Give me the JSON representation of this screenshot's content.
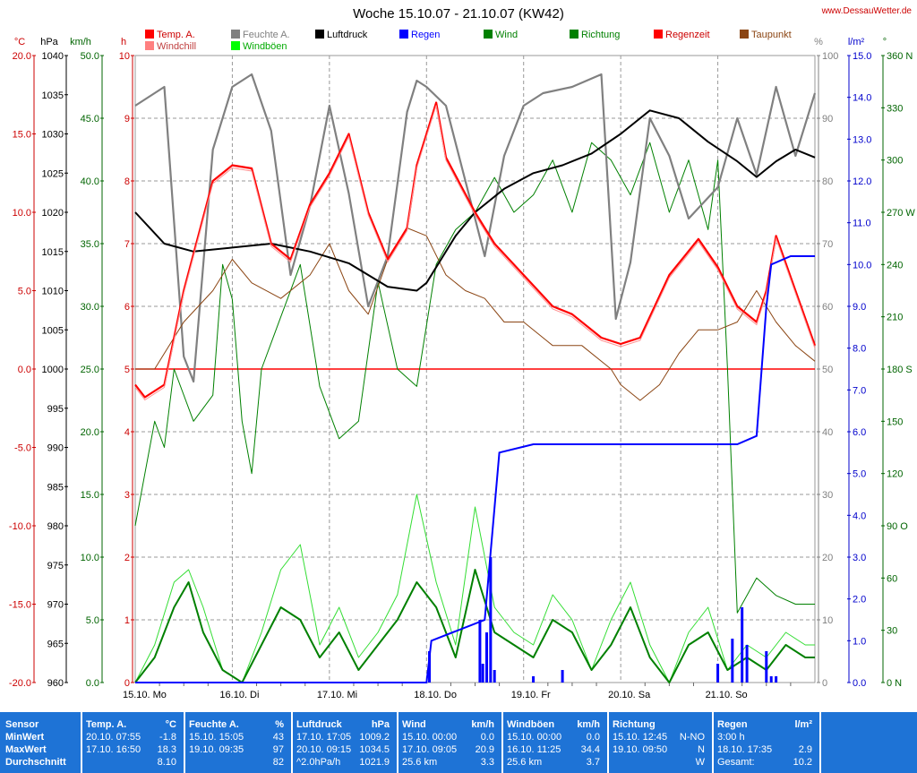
{
  "header": {
    "title": "Woche 15.10.07 - 21.10.07 (KW42)",
    "site": "www.DessauWetter.de"
  },
  "chart_data": {
    "type": "line",
    "title": "Woche 15.10.07 - 21.10.07 (KW42)",
    "x_labels": [
      "15.10. Mo",
      "16.10. Di",
      "17.10. Mi",
      "18.10. Do",
      "19.10. Fr",
      "20.10. Sa",
      "21.10. So"
    ],
    "grid": true,
    "legend": [
      {
        "name": "Temp. A.",
        "color": "#ff0000"
      },
      {
        "name": "Windchill",
        "color": "#ff8080"
      },
      {
        "name": "Feuchte A.",
        "color": "#808080"
      },
      {
        "name": "Windböen",
        "color": "#00ff00"
      },
      {
        "name": "Luftdruck",
        "color": "#000000"
      },
      {
        "name": "Regen",
        "color": "#0000ff"
      },
      {
        "name": "Wind",
        "color": "#008000"
      },
      {
        "name": "Richtung",
        "color": "#008000"
      },
      {
        "name": "Regenzeit",
        "color": "#ff0000"
      },
      {
        "name": "Taupunkt",
        "color": "#8b4513"
      }
    ],
    "axes": {
      "temp": {
        "unit": "°C",
        "color": "#cc0000",
        "ticks": [
          "20.0",
          "15.0",
          "10.0",
          "5.0",
          "0.0",
          "-5.0",
          "-10.0",
          "-15.0",
          "-20.0"
        ],
        "ylim": [
          -20,
          20
        ]
      },
      "pressure": {
        "unit": "hPa",
        "color": "#000000",
        "ticks": [
          "1040",
          "1035",
          "1030",
          "1025",
          "1020",
          "1015",
          "1010",
          "1005",
          "1000",
          "995",
          "990",
          "985",
          "980",
          "975",
          "970",
          "965",
          "960"
        ],
        "ylim": [
          960,
          1040
        ]
      },
      "wind": {
        "unit": "km/h",
        "color": "#006400",
        "ticks": [
          "50.0",
          "45.0",
          "40.0",
          "35.0",
          "30.0",
          "25.0",
          "20.0",
          "15.0",
          "10.0",
          "5.0",
          "0.0"
        ],
        "ylim": [
          0,
          50
        ]
      },
      "raintime": {
        "unit": "h",
        "color": "#cc0000",
        "ticks": [
          "10",
          "9",
          "8",
          "7",
          "6",
          "5",
          "4",
          "3",
          "2",
          "1",
          "0"
        ],
        "ylim": [
          0,
          10
        ]
      },
      "humidity": {
        "unit": "%",
        "color": "#808080",
        "ticks": [
          "100",
          "90",
          "80",
          "70",
          "60",
          "50",
          "40",
          "30",
          "20",
          "10",
          "0"
        ],
        "ylim": [
          0,
          100
        ]
      },
      "rain": {
        "unit": "l/m²",
        "color": "#0000cc",
        "ticks": [
          "15.0",
          "14.0",
          "13.0",
          "12.0",
          "11.0",
          "10.0",
          "9.0",
          "8.0",
          "7.0",
          "6.0",
          "5.0",
          "4.0",
          "3.0",
          "2.0",
          "1.0",
          "0.0"
        ],
        "ylim": [
          0,
          15
        ]
      },
      "direction": {
        "unit": "°",
        "color": "#006400",
        "ticks": [
          "360 N",
          "330",
          "300",
          "270 W",
          "240",
          "210",
          "180 S",
          "150",
          "120",
          "90 O",
          "60",
          "30",
          "0  N"
        ],
        "ylim": [
          0,
          360
        ]
      }
    },
    "series": [
      {
        "name": "Temp. A.",
        "axis": "temp",
        "x": [
          0,
          0.1,
          0.3,
          0.5,
          0.8,
          1.0,
          1.2,
          1.4,
          1.6,
          1.8,
          2.0,
          2.2,
          2.4,
          2.6,
          2.8,
          2.9,
          3.0,
          3.1,
          3.2,
          3.5,
          3.7,
          4.0,
          4.3,
          4.5,
          4.8,
          5.0,
          5.2,
          5.5,
          5.8,
          6.0,
          6.2,
          6.4,
          6.5,
          6.6,
          6.8,
          7.0
        ],
        "values": [
          -1,
          -1.8,
          -1,
          5,
          12,
          13,
          12.8,
          8,
          7,
          10.5,
          12.5,
          15,
          10,
          7,
          9,
          13,
          15,
          17,
          13.5,
          10,
          8,
          6,
          4,
          3.5,
          2,
          1.6,
          2,
          6,
          8.3,
          6.5,
          4,
          3,
          5,
          8.5,
          5,
          1.5
        ]
      },
      {
        "name": "Feuchte A.",
        "axis": "humidity",
        "x": [
          0,
          0.3,
          0.5,
          0.6,
          0.8,
          1.0,
          1.2,
          1.4,
          1.6,
          1.8,
          2.0,
          2.2,
          2.4,
          2.6,
          2.8,
          2.9,
          3.0,
          3.2,
          3.4,
          3.6,
          3.8,
          4.0,
          4.2,
          4.5,
          4.8,
          4.95,
          5.1,
          5.3,
          5.5,
          5.7,
          6.0,
          6.2,
          6.4,
          6.6,
          6.8,
          7.0
        ],
        "values": [
          92,
          95,
          52,
          48,
          85,
          95,
          97,
          88,
          65,
          76,
          92,
          78,
          60,
          68,
          91,
          96,
          95,
          92,
          80,
          68,
          84,
          92,
          94,
          95,
          97,
          58,
          67,
          90,
          84,
          74,
          79,
          90,
          81,
          95,
          84,
          94
        ]
      },
      {
        "name": "Luftdruck",
        "axis": "pressure",
        "x": [
          0,
          0.3,
          0.6,
          1.0,
          1.4,
          1.8,
          2.2,
          2.6,
          2.9,
          3.0,
          3.1,
          3.3,
          3.5,
          3.8,
          4.1,
          4.4,
          4.7,
          5.0,
          5.3,
          5.6,
          5.9,
          6.2,
          6.4,
          6.6,
          6.8,
          7.0
        ],
        "values": [
          1020,
          1016,
          1015,
          1015.5,
          1016,
          1015,
          1013.5,
          1010.5,
          1010,
          1011,
          1013,
          1017,
          1020,
          1023,
          1025,
          1026,
          1027.5,
          1030,
          1033,
          1032,
          1029,
          1026.5,
          1024.5,
          1026.5,
          1028,
          1027
        ]
      },
      {
        "name": "Taupunkt",
        "axis": "temp",
        "x": [
          0,
          0.2,
          0.5,
          0.8,
          1.0,
          1.2,
          1.5,
          1.8,
          2.0,
          2.2,
          2.4,
          2.6,
          2.8,
          3.0,
          3.2,
          3.4,
          3.6,
          3.8,
          4.0,
          4.3,
          4.6,
          4.9,
          5.0,
          5.2,
          5.4,
          5.6,
          5.8,
          6.0,
          6.2,
          6.4,
          6.6,
          6.8,
          7.0
        ],
        "values": [
          0,
          0,
          3,
          5,
          7,
          5.5,
          4.5,
          6,
          8,
          5,
          3.5,
          7,
          9,
          8.5,
          6,
          5,
          4.5,
          3,
          3,
          1.5,
          1.5,
          0,
          -1,
          -2,
          -1,
          1,
          2.5,
          2.5,
          3,
          5,
          3,
          1.5,
          0.5
        ]
      },
      {
        "name": "Wind",
        "axis": "wind",
        "x": [
          0,
          0.2,
          0.4,
          0.55,
          0.7,
          0.9,
          1.1,
          1.3,
          1.5,
          1.7,
          1.9,
          2.1,
          2.3,
          2.5,
          2.7,
          2.9,
          3.1,
          3.3,
          3.5,
          3.7,
          3.9,
          4.1,
          4.3,
          4.5,
          4.7,
          4.9,
          5.1,
          5.3,
          5.5,
          5.7,
          5.9,
          6.1,
          6.3,
          6.5,
          6.7,
          6.9,
          7.0
        ],
        "values": [
          0,
          2,
          6,
          8,
          4,
          1,
          0,
          3,
          6,
          5,
          2,
          4,
          1,
          3,
          5,
          8,
          6,
          2,
          9,
          4,
          3,
          2,
          5,
          4,
          1,
          3,
          6,
          2,
          0,
          3,
          4,
          1,
          2,
          1,
          3,
          2,
          2
        ]
      },
      {
        "name": "Windböen",
        "axis": "wind",
        "x": [
          0,
          0.2,
          0.4,
          0.55,
          0.7,
          0.9,
          1.1,
          1.3,
          1.5,
          1.7,
          1.9,
          2.1,
          2.3,
          2.5,
          2.7,
          2.9,
          3.1,
          3.3,
          3.5,
          3.7,
          3.9,
          4.1,
          4.3,
          4.5,
          4.7,
          4.9,
          5.1,
          5.3,
          5.5,
          5.7,
          5.9,
          6.1,
          6.3,
          6.5,
          6.7,
          6.9,
          7.0
        ],
        "values": [
          0,
          3,
          8,
          9,
          6,
          1,
          0,
          4,
          9,
          11,
          3,
          6,
          2,
          4,
          7,
          15,
          8,
          3,
          14,
          6,
          4,
          3,
          7,
          5,
          1,
          5,
          8,
          3,
          0,
          4,
          6,
          1,
          3,
          2,
          4,
          3,
          3
        ]
      },
      {
        "name": "Richtung",
        "axis": "direction",
        "x": [
          0,
          0.1,
          0.2,
          0.3,
          0.4,
          0.6,
          0.8,
          0.9,
          1.0,
          1.1,
          1.2,
          1.3,
          1.5,
          1.7,
          1.9,
          2.1,
          2.3,
          2.5,
          2.7,
          2.9,
          3.1,
          3.3,
          3.5,
          3.7,
          3.9,
          4.1,
          4.3,
          4.5,
          4.7,
          4.9,
          5.1,
          5.3,
          5.5,
          5.7,
          5.9,
          6.0,
          6.1,
          6.2,
          6.4,
          6.6,
          6.8,
          7.0
        ],
        "values": [
          90,
          120,
          150,
          135,
          180,
          150,
          165,
          240,
          220,
          150,
          120,
          180,
          210,
          240,
          170,
          140,
          150,
          230,
          180,
          170,
          240,
          260,
          270,
          290,
          270,
          280,
          300,
          270,
          310,
          300,
          280,
          310,
          270,
          300,
          260,
          300,
          180,
          40,
          60,
          50,
          45,
          45
        ]
      }
    ],
    "rain_total": {
      "axis": "rain",
      "x": [
        0,
        3.0,
        3.05,
        3.6,
        3.75,
        4.1,
        6.2,
        6.4,
        6.5,
        6.55,
        6.75,
        7.0
      ],
      "values": [
        0,
        0,
        1,
        1.5,
        5.5,
        5.7,
        5.7,
        5.9,
        9,
        10,
        10.2,
        10.2
      ]
    },
    "rain_time": {
      "axis": "raintime",
      "x": [
        3.03,
        3.55,
        3.58,
        3.62,
        3.66,
        3.7,
        4.1,
        4.4,
        6.0,
        6.15,
        6.25,
        6.3,
        6.5,
        6.55,
        6.6
      ],
      "values": [
        0.5,
        1,
        0.3,
        0.8,
        2,
        0.2,
        0.1,
        0.2,
        0.3,
        0.7,
        1.2,
        0.6,
        0.5,
        0.1,
        0.1
      ]
    }
  },
  "table": {
    "row_labels": [
      "Sensor",
      "MinWert",
      "MaxWert",
      "Durchschnitt"
    ],
    "columns": [
      {
        "name": "Temp. A.",
        "unit": "°C",
        "rows": [
          [
            "20.10. 07:55",
            "-1.8"
          ],
          [
            "17.10. 16:50",
            "18.3"
          ],
          [
            "",
            "8.10"
          ]
        ]
      },
      {
        "name": "Feuchte A.",
        "unit": "%",
        "rows": [
          [
            "15.10. 15:05",
            "43"
          ],
          [
            "19.10. 09:35",
            "97"
          ],
          [
            "",
            "82"
          ]
        ]
      },
      {
        "name": "Luftdruck",
        "unit": "hPa",
        "rows": [
          [
            "17.10. 17:05",
            "1009.2"
          ],
          [
            "20.10. 09:15",
            "1034.5"
          ],
          [
            "^2.0hPa/h",
            "1021.9"
          ]
        ]
      },
      {
        "name": "Wind",
        "unit": "km/h",
        "rows": [
          [
            "15.10. 00:00",
            "0.0"
          ],
          [
            "17.10. 09:05",
            "20.9"
          ],
          [
            "25.6 km",
            "3.3"
          ]
        ]
      },
      {
        "name": "Windböen",
        "unit": "km/h",
        "rows": [
          [
            "15.10. 00:00",
            "0.0"
          ],
          [
            "16.10. 11:25",
            "34.4"
          ],
          [
            "25.6 km",
            "3.7"
          ]
        ]
      },
      {
        "name": "Richtung",
        "unit": "",
        "rows": [
          [
            "15.10. 12:45",
            "N-NO"
          ],
          [
            "19.10. 09:50",
            "N"
          ],
          [
            "",
            "W"
          ]
        ]
      },
      {
        "name": "Regen",
        "unit": "l/m²",
        "rows": [
          [
            "3:00 h",
            ""
          ],
          [
            "18.10. 17:35",
            "2.9"
          ],
          [
            "Gesamt:",
            "10.2"
          ]
        ]
      }
    ]
  }
}
